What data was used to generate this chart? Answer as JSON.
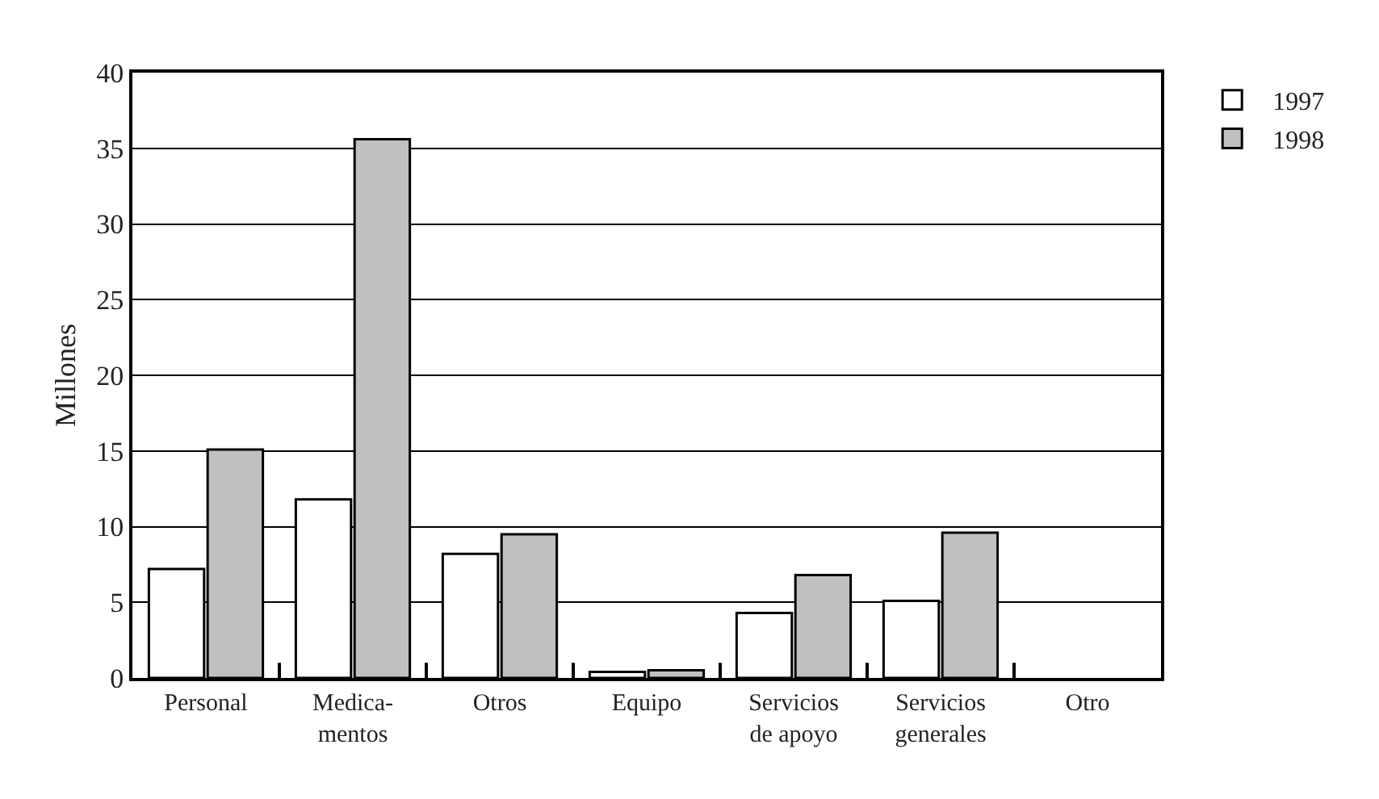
{
  "chart_data": {
    "type": "bar",
    "ylabel": "Millones",
    "categories": [
      "Personal",
      "Medica-\nmentos",
      "Otros",
      "Equipo",
      "Servicios\nde apoyo",
      "Servicios\ngenerales",
      "Otro"
    ],
    "series": [
      {
        "name": "1997",
        "color": "#ffffff",
        "values": [
          7.2,
          11.8,
          8.2,
          0.4,
          4.3,
          5.1,
          0
        ]
      },
      {
        "name": "1998",
        "color": "#c0c0c0",
        "values": [
          15.1,
          35.6,
          9.5,
          0.5,
          6.8,
          9.6,
          0
        ]
      }
    ],
    "ylim": [
      0,
      40
    ],
    "yticks": [
      0,
      5,
      10,
      15,
      20,
      25,
      30,
      35,
      40
    ],
    "grid": "y",
    "legend": "top right"
  }
}
